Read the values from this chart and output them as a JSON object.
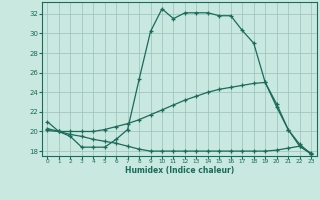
{
  "xlabel": "Humidex (Indice chaleur)",
  "ylabel": "",
  "background_color": "#c8e8e0",
  "grid_color": "#9bbfba",
  "line_color": "#1a6b5a",
  "xlim": [
    -0.5,
    23.5
  ],
  "ylim": [
    17.5,
    33.2
  ],
  "xticks": [
    0,
    1,
    2,
    3,
    4,
    5,
    6,
    7,
    8,
    9,
    10,
    11,
    12,
    13,
    14,
    15,
    16,
    17,
    18,
    19,
    20,
    21,
    22,
    23
  ],
  "yticks": [
    18,
    20,
    22,
    24,
    26,
    28,
    30,
    32
  ],
  "line1_x": [
    0,
    1,
    2,
    3,
    4,
    5,
    6,
    7,
    8,
    9,
    10,
    11,
    12,
    13,
    14,
    15,
    16,
    17,
    18,
    19,
    20,
    21,
    22,
    23
  ],
  "line1_y": [
    21.0,
    20.0,
    19.5,
    18.4,
    18.4,
    18.4,
    19.2,
    20.2,
    25.3,
    30.2,
    32.5,
    31.5,
    32.1,
    32.1,
    32.1,
    31.8,
    31.8,
    30.3,
    29.0,
    25.0,
    22.8,
    20.2,
    18.7,
    17.7
  ],
  "line2_x": [
    0,
    1,
    2,
    3,
    4,
    5,
    6,
    7,
    8,
    9,
    10,
    11,
    12,
    13,
    14,
    15,
    16,
    17,
    18,
    19,
    20,
    21,
    22,
    23
  ],
  "line2_y": [
    20.1,
    20.0,
    20.0,
    20.0,
    20.0,
    20.2,
    20.5,
    20.8,
    21.2,
    21.7,
    22.2,
    22.7,
    23.2,
    23.6,
    24.0,
    24.3,
    24.5,
    24.7,
    24.9,
    25.0,
    22.5,
    20.2,
    18.5,
    17.8
  ],
  "line3_x": [
    0,
    1,
    2,
    3,
    4,
    5,
    6,
    7,
    8,
    9,
    10,
    11,
    12,
    13,
    14,
    15,
    16,
    17,
    18,
    19,
    20,
    21,
    22,
    23
  ],
  "line3_y": [
    20.3,
    20.0,
    19.7,
    19.5,
    19.2,
    19.0,
    18.8,
    18.5,
    18.2,
    18.0,
    18.0,
    18.0,
    18.0,
    18.0,
    18.0,
    18.0,
    18.0,
    18.0,
    18.0,
    18.0,
    18.1,
    18.3,
    18.5,
    17.7
  ]
}
